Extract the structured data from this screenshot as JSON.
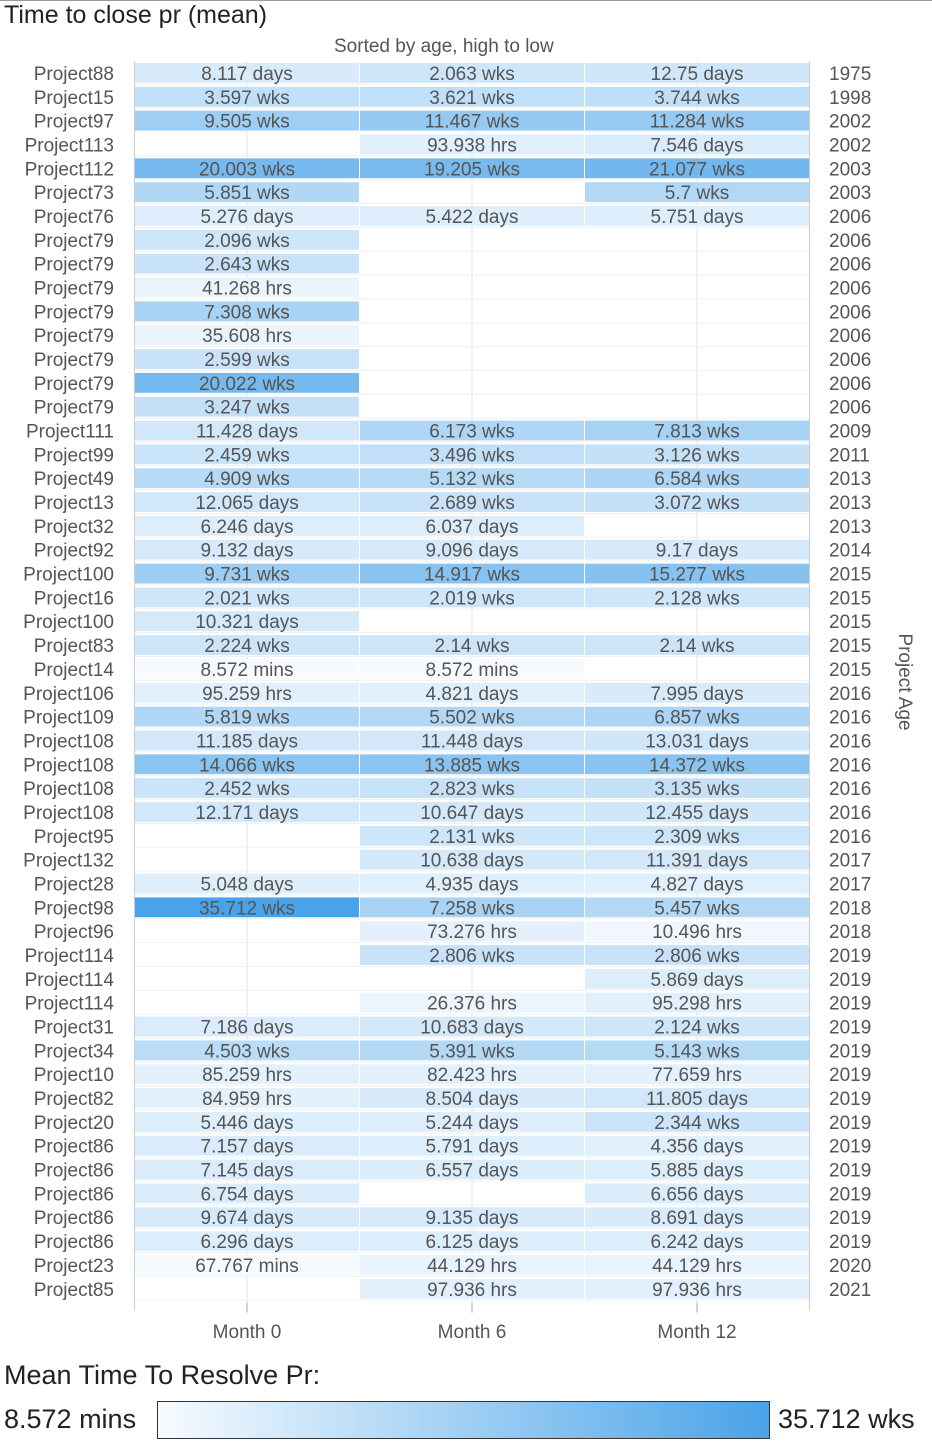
{
  "chart_data": {
    "type": "heatmap",
    "title": "Time to close pr (mean)",
    "subtitle": "Sorted by age, high to low",
    "columns": [
      "Month 0",
      "Month 6",
      "Month 12"
    ],
    "right_axis_label": "Project Age",
    "legend": {
      "title": "Mean Time To Resolve Pr:",
      "min_label": "8.572 mins",
      "max_label": "35.712 wks",
      "color_low": "#f7fbff",
      "color_high": "#4aa3e8"
    },
    "rows": [
      {
        "project": "Project88",
        "year": "1975",
        "cells": [
          "8.117 days",
          "2.063 wks",
          "12.75 days"
        ]
      },
      {
        "project": "Project15",
        "year": "1998",
        "cells": [
          "3.597 wks",
          "3.621 wks",
          "3.744 wks"
        ]
      },
      {
        "project": "Project97",
        "year": "2002",
        "cells": [
          "9.505 wks",
          "11.467 wks",
          "11.284 wks"
        ]
      },
      {
        "project": "Project113",
        "year": "2002",
        "cells": [
          null,
          "93.938 hrs",
          "7.546 days"
        ]
      },
      {
        "project": "Project112",
        "year": "2003",
        "cells": [
          "20.003 wks",
          "19.205 wks",
          "21.077 wks"
        ]
      },
      {
        "project": "Project73",
        "year": "2003",
        "cells": [
          "5.851 wks",
          null,
          "5.7 wks"
        ]
      },
      {
        "project": "Project76",
        "year": "2006",
        "cells": [
          "5.276 days",
          "5.422 days",
          "5.751 days"
        ]
      },
      {
        "project": "Project79",
        "year": "2006",
        "cells": [
          "2.096 wks",
          null,
          null
        ]
      },
      {
        "project": "Project79",
        "year": "2006",
        "cells": [
          "2.643 wks",
          null,
          null
        ]
      },
      {
        "project": "Project79",
        "year": "2006",
        "cells": [
          "41.268 hrs",
          null,
          null
        ]
      },
      {
        "project": "Project79",
        "year": "2006",
        "cells": [
          "7.308 wks",
          null,
          null
        ]
      },
      {
        "project": "Project79",
        "year": "2006",
        "cells": [
          "35.608 hrs",
          null,
          null
        ]
      },
      {
        "project": "Project79",
        "year": "2006",
        "cells": [
          "2.599 wks",
          null,
          null
        ]
      },
      {
        "project": "Project79",
        "year": "2006",
        "cells": [
          "20.022 wks",
          null,
          null
        ]
      },
      {
        "project": "Project79",
        "year": "2006",
        "cells": [
          "3.247 wks",
          null,
          null
        ]
      },
      {
        "project": "Project111",
        "year": "2009",
        "cells": [
          "11.428 days",
          "6.173 wks",
          "7.813 wks"
        ]
      },
      {
        "project": "Project99",
        "year": "2011",
        "cells": [
          "2.459 wks",
          "3.496 wks",
          "3.126 wks"
        ]
      },
      {
        "project": "Project49",
        "year": "2013",
        "cells": [
          "4.909 wks",
          "5.132 wks",
          "6.584 wks"
        ]
      },
      {
        "project": "Project13",
        "year": "2013",
        "cells": [
          "12.065 days",
          "2.689 wks",
          "3.072 wks"
        ]
      },
      {
        "project": "Project32",
        "year": "2013",
        "cells": [
          "6.246 days",
          "6.037 days",
          null
        ]
      },
      {
        "project": "Project92",
        "year": "2014",
        "cells": [
          "9.132 days",
          "9.096 days",
          "9.17 days"
        ]
      },
      {
        "project": "Project100",
        "year": "2015",
        "cells": [
          "9.731 wks",
          "14.917 wks",
          "15.277 wks"
        ]
      },
      {
        "project": "Project16",
        "year": "2015",
        "cells": [
          "2.021 wks",
          "2.019 wks",
          "2.128 wks"
        ]
      },
      {
        "project": "Project100",
        "year": "2015",
        "cells": [
          "10.321 days",
          null,
          null
        ]
      },
      {
        "project": "Project83",
        "year": "2015",
        "cells": [
          "2.224 wks",
          "2.14 wks",
          "2.14 wks"
        ]
      },
      {
        "project": "Project14",
        "year": "2015",
        "cells": [
          "8.572 mins",
          "8.572 mins",
          null
        ]
      },
      {
        "project": "Project106",
        "year": "2016",
        "cells": [
          "95.259 hrs",
          "4.821 days",
          "7.995 days"
        ]
      },
      {
        "project": "Project109",
        "year": "2016",
        "cells": [
          "5.819 wks",
          "5.502 wks",
          "6.857 wks"
        ]
      },
      {
        "project": "Project108",
        "year": "2016",
        "cells": [
          "11.185 days",
          "11.448 days",
          "13.031 days"
        ]
      },
      {
        "project": "Project108",
        "year": "2016",
        "cells": [
          "14.066 wks",
          "13.885 wks",
          "14.372 wks"
        ]
      },
      {
        "project": "Project108",
        "year": "2016",
        "cells": [
          "2.452 wks",
          "2.823 wks",
          "3.135 wks"
        ]
      },
      {
        "project": "Project108",
        "year": "2016",
        "cells": [
          "12.171 days",
          "10.647 days",
          "12.455 days"
        ]
      },
      {
        "project": "Project95",
        "year": "2016",
        "cells": [
          null,
          "2.131 wks",
          "2.309 wks"
        ]
      },
      {
        "project": "Project132",
        "year": "2017",
        "cells": [
          null,
          "10.638 days",
          "11.391 days"
        ]
      },
      {
        "project": "Project28",
        "year": "2017",
        "cells": [
          "5.048 days",
          "4.935 days",
          "4.827 days"
        ]
      },
      {
        "project": "Project98",
        "year": "2018",
        "cells": [
          "35.712 wks",
          "7.258 wks",
          "5.457 wks"
        ]
      },
      {
        "project": "Project96",
        "year": "2018",
        "cells": [
          null,
          "73.276 hrs",
          "10.496 hrs"
        ]
      },
      {
        "project": "Project114",
        "year": "2019",
        "cells": [
          null,
          "2.806 wks",
          "2.806 wks"
        ]
      },
      {
        "project": "Project114",
        "year": "2019",
        "cells": [
          null,
          null,
          "5.869 days"
        ]
      },
      {
        "project": "Project114",
        "year": "2019",
        "cells": [
          null,
          "26.376 hrs",
          "95.298 hrs"
        ]
      },
      {
        "project": "Project31",
        "year": "2019",
        "cells": [
          "7.186 days",
          "10.683 days",
          "2.124 wks"
        ]
      },
      {
        "project": "Project34",
        "year": "2019",
        "cells": [
          "4.503 wks",
          "5.391 wks",
          "5.143 wks"
        ]
      },
      {
        "project": "Project10",
        "year": "2019",
        "cells": [
          "85.259 hrs",
          "82.423 hrs",
          "77.659 hrs"
        ]
      },
      {
        "project": "Project82",
        "year": "2019",
        "cells": [
          "84.959 hrs",
          "8.504 days",
          "11.805 days"
        ]
      },
      {
        "project": "Project20",
        "year": "2019",
        "cells": [
          "5.446 days",
          "5.244 days",
          "2.344 wks"
        ]
      },
      {
        "project": "Project86",
        "year": "2019",
        "cells": [
          "7.157 days",
          "5.791 days",
          "4.356 days"
        ]
      },
      {
        "project": "Project86",
        "year": "2019",
        "cells": [
          "7.145 days",
          "6.557 days",
          "5.885 days"
        ]
      },
      {
        "project": "Project86",
        "year": "2019",
        "cells": [
          "6.754 days",
          null,
          "6.656 days"
        ]
      },
      {
        "project": "Project86",
        "year": "2019",
        "cells": [
          "9.674 days",
          "9.135 days",
          "8.691 days"
        ]
      },
      {
        "project": "Project86",
        "year": "2019",
        "cells": [
          "6.296 days",
          "6.125 days",
          "6.242 days"
        ]
      },
      {
        "project": "Project23",
        "year": "2020",
        "cells": [
          "67.767 mins",
          "44.129 hrs",
          "44.129 hrs"
        ]
      },
      {
        "project": "Project85",
        "year": "2021",
        "cells": [
          null,
          "97.936 hrs",
          "97.936 hrs"
        ]
      }
    ]
  }
}
